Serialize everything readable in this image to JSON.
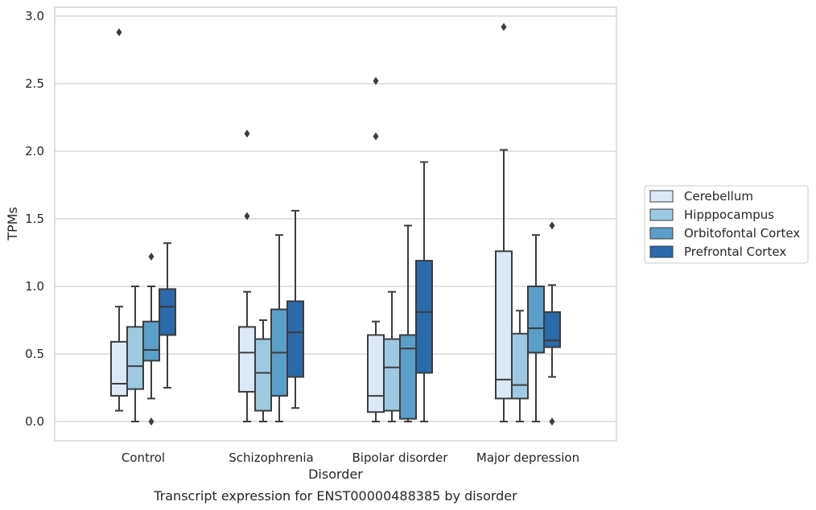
{
  "chart_data": {
    "type": "box",
    "xlabel": "Disorder",
    "ylabel": "TPMs",
    "caption": "Transcript expression for ENST00000488385 by disorder",
    "ylim": [
      -0.14,
      3.07
    ],
    "yticks": [
      "0.0",
      "0.5",
      "1.0",
      "1.5",
      "2.0",
      "2.5",
      "3.0"
    ],
    "grid": "horizontal",
    "legend_position": "right",
    "categories": [
      "Control",
      "Schizophrenia",
      "Bipolar disorder",
      "Major depression"
    ],
    "series": [
      {
        "name": "Cerebellum",
        "color": "#dbe9f6",
        "boxes": [
          {
            "whisker_low": 0.08,
            "q1": 0.19,
            "median": 0.28,
            "q3": 0.59,
            "whisker_high": 0.85,
            "outliers": [
              2.88
            ]
          },
          {
            "whisker_low": 0.0,
            "q1": 0.22,
            "median": 0.51,
            "q3": 0.7,
            "whisker_high": 0.96,
            "outliers": [
              1.52,
              2.13
            ]
          },
          {
            "whisker_low": 0.0,
            "q1": 0.07,
            "median": 0.19,
            "q3": 0.64,
            "whisker_high": 0.74,
            "outliers": [
              2.11,
              2.52
            ]
          },
          {
            "whisker_low": 0.0,
            "q1": 0.17,
            "median": 0.31,
            "q3": 1.26,
            "whisker_high": 2.01,
            "outliers": [
              2.92
            ]
          }
        ]
      },
      {
        "name": "Hipppocampus",
        "color": "#9ecae1",
        "boxes": [
          {
            "whisker_low": 0.0,
            "q1": 0.24,
            "median": 0.41,
            "q3": 0.7,
            "whisker_high": 1.0,
            "outliers": []
          },
          {
            "whisker_low": 0.0,
            "q1": 0.08,
            "median": 0.36,
            "q3": 0.61,
            "whisker_high": 0.75,
            "outliers": []
          },
          {
            "whisker_low": 0.0,
            "q1": 0.08,
            "median": 0.4,
            "q3": 0.61,
            "whisker_high": 0.96,
            "outliers": []
          },
          {
            "whisker_low": 0.0,
            "q1": 0.17,
            "median": 0.27,
            "q3": 0.65,
            "whisker_high": 0.82,
            "outliers": []
          }
        ]
      },
      {
        "name": "Orbitofontal Cortex",
        "color": "#5a9ec9",
        "boxes": [
          {
            "whisker_low": 0.17,
            "q1": 0.45,
            "median": 0.53,
            "q3": 0.74,
            "whisker_high": 1.0,
            "outliers": [
              0.0,
              1.22
            ]
          },
          {
            "whisker_low": 0.0,
            "q1": 0.19,
            "median": 0.51,
            "q3": 0.83,
            "whisker_high": 1.38,
            "outliers": []
          },
          {
            "whisker_low": 0.0,
            "q1": 0.02,
            "median": 0.54,
            "q3": 0.64,
            "whisker_high": 1.45,
            "outliers": []
          },
          {
            "whisker_low": 0.0,
            "q1": 0.51,
            "median": 0.69,
            "q3": 1.0,
            "whisker_high": 1.38,
            "outliers": []
          }
        ]
      },
      {
        "name": "Prefrontal Cortex",
        "color": "#2b6aab",
        "boxes": [
          {
            "whisker_low": 0.25,
            "q1": 0.64,
            "median": 0.85,
            "q3": 0.98,
            "whisker_high": 1.32,
            "outliers": []
          },
          {
            "whisker_low": 0.1,
            "q1": 0.33,
            "median": 0.66,
            "q3": 0.89,
            "whisker_high": 1.56,
            "outliers": []
          },
          {
            "whisker_low": 0.0,
            "q1": 0.36,
            "median": 0.81,
            "q3": 1.19,
            "whisker_high": 1.92,
            "outliers": []
          },
          {
            "whisker_low": 0.33,
            "q1": 0.55,
            "median": 0.6,
            "q3": 0.81,
            "whisker_high": 1.01,
            "outliers": [
              0.0,
              1.45
            ]
          }
        ]
      }
    ]
  }
}
